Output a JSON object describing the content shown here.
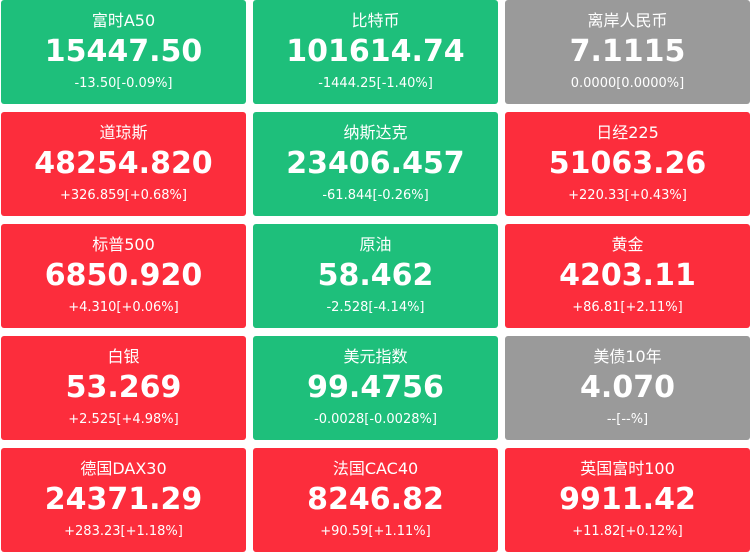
{
  "colors": {
    "up": "#fc2d3c",
    "down": "#1ebf7b",
    "flat": "#9a9a9a",
    "text": "#ffffff"
  },
  "quotes": [
    {
      "name": "富时A50",
      "price": "15447.50",
      "change": "-13.50[-0.09%]",
      "trend": "down"
    },
    {
      "name": "比特币",
      "price": "101614.74",
      "change": "-1444.25[-1.40%]",
      "trend": "down"
    },
    {
      "name": "离岸人民币",
      "price": "7.1115",
      "change": "0.0000[0.0000%]",
      "trend": "flat"
    },
    {
      "name": "道琼斯",
      "price": "48254.820",
      "change": "+326.859[+0.68%]",
      "trend": "up"
    },
    {
      "name": "纳斯达克",
      "price": "23406.457",
      "change": "-61.844[-0.26%]",
      "trend": "down"
    },
    {
      "name": "日经225",
      "price": "51063.26",
      "change": "+220.33[+0.43%]",
      "trend": "up"
    },
    {
      "name": "标普500",
      "price": "6850.920",
      "change": "+4.310[+0.06%]",
      "trend": "up"
    },
    {
      "name": "原油",
      "price": "58.462",
      "change": "-2.528[-4.14%]",
      "trend": "down"
    },
    {
      "name": "黄金",
      "price": "4203.11",
      "change": "+86.81[+2.11%]",
      "trend": "up"
    },
    {
      "name": "白银",
      "price": "53.269",
      "change": "+2.525[+4.98%]",
      "trend": "up"
    },
    {
      "name": "美元指数",
      "price": "99.4756",
      "change": "-0.0028[-0.0028%]",
      "trend": "down"
    },
    {
      "name": "美债10年",
      "price": "4.070",
      "change": "--[--%]",
      "trend": "flat"
    },
    {
      "name": "德国DAX30",
      "price": "24371.29",
      "change": "+283.23[+1.18%]",
      "trend": "up"
    },
    {
      "name": "法国CAC40",
      "price": "8246.82",
      "change": "+90.59[+1.11%]",
      "trend": "up"
    },
    {
      "name": "英国富时100",
      "price": "9911.42",
      "change": "+11.82[+0.12%]",
      "trend": "up"
    }
  ]
}
